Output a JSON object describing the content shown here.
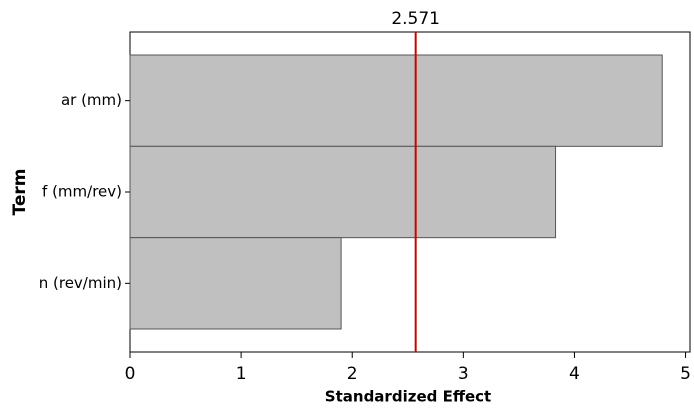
{
  "chart_data": {
    "type": "bar",
    "orientation": "horizontal",
    "categories": [
      "ar (mm)",
      "f (mm/rev)",
      "n (rev/min)"
    ],
    "values": [
      4.79,
      3.83,
      1.9
    ],
    "color": "#c0c0c0",
    "xlabel": "Standardized Effect",
    "ylabel": "Term",
    "xlim": [
      0,
      5.04
    ],
    "xticks": [
      0,
      1,
      2,
      3,
      4,
      5
    ],
    "reference_line": {
      "value": 2.571,
      "color": "#cc0000"
    }
  }
}
